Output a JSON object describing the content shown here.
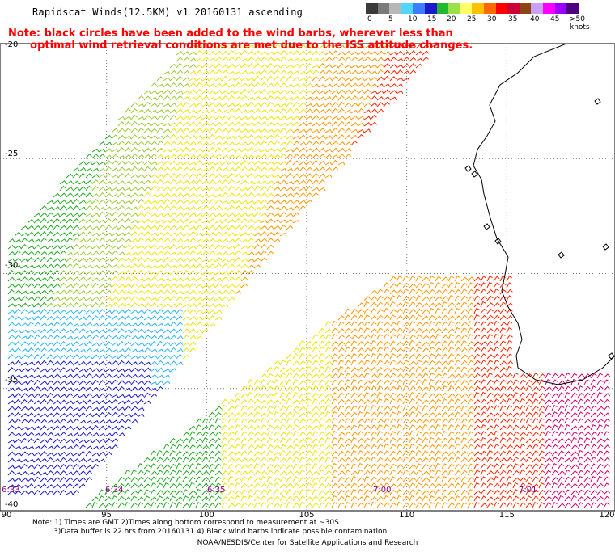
{
  "header": {
    "title": "Rapidscat Winds(12.5KM) v1 20160131 ascending",
    "note_line1": "Note: black circles have been added to the wind barbs, wherever less than",
    "note_line2": "      optimal wind retrieval conditions are met due to the ISS attitude changes."
  },
  "colorbar": {
    "colors": [
      "#3a3a3a",
      "#7a7a7a",
      "#b8b8b8",
      "#4fd6ff",
      "#3a7dff",
      "#1a1acc",
      "#1fb82e",
      "#99e04a",
      "#ffff66",
      "#ffc000",
      "#ff6a00",
      "#ff0000",
      "#cc0033",
      "#8b4513",
      "#c8a0ff",
      "#ff00ff",
      "#9a00ff",
      "#4a0080"
    ],
    "labels": [
      "0",
      "5",
      "10",
      "15",
      "20",
      "25",
      "30",
      "35",
      "40",
      "45",
      ">50 knots"
    ]
  },
  "map": {
    "lat_labels": [
      "-20",
      "-25",
      "-30",
      "-35",
      "-40"
    ],
    "lon_labels": [
      "90",
      "95",
      "100",
      "105",
      "110",
      "115",
      "120"
    ],
    "time_labels": [
      "6:33",
      "6:34",
      "6:35",
      "7:00",
      "7:01"
    ],
    "swath_colors": {
      "low": "#1a1acc",
      "cyan": "#29b6f6",
      "green": "#22aa22",
      "lightgreen": "#99cc33",
      "yellow": "#f2e400",
      "orange": "#ff9900",
      "red": "#ff2200",
      "magenta": "#d4006e"
    }
  },
  "footer": {
    "line1": "Note: 1) Times are GMT 2)Times along bottom correspond to measurement at ~30S",
    "line2": "3)Data buffer is 22 hrs from 20160131 4) Black wind barbs indicate possible contamination",
    "line3": "NOAA/NESDIS/Center for Satellite Applications and Research"
  }
}
